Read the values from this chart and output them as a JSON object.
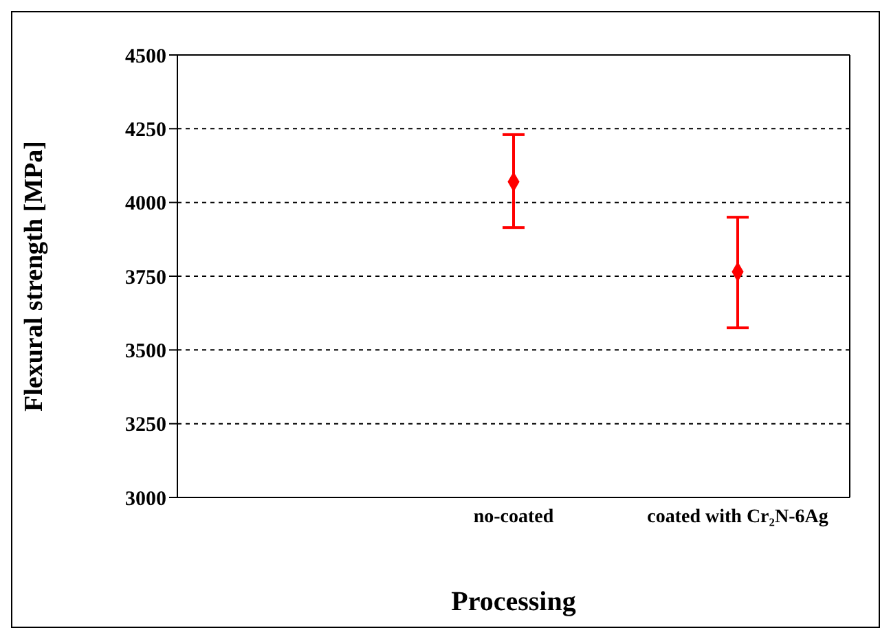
{
  "chart_data": {
    "type": "scatter",
    "xlabel": "Processing",
    "ylabel": "Flexural strength [MPa]",
    "categories": [
      null,
      "no-coated",
      "coated with Cr₂N-6Ag"
    ],
    "values": [
      null,
      4070,
      3765
    ],
    "errors": [
      null,
      [
        3915,
        4230
      ],
      [
        3575,
        3950
      ]
    ],
    "color": "#ff0000",
    "marker": "diamond",
    "grid": "y",
    "ylim": [
      3000,
      4500
    ],
    "yticks": [
      3000,
      3250,
      3500,
      3750,
      4000,
      4250,
      4500
    ]
  }
}
